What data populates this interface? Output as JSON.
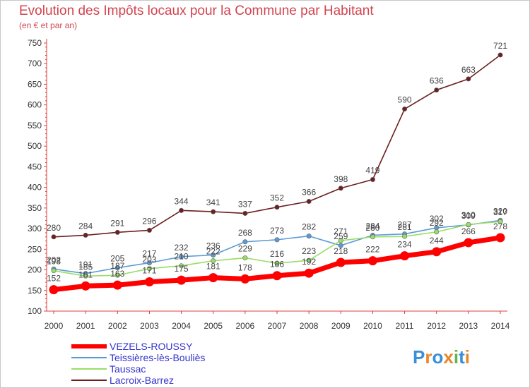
{
  "header": {
    "title": "Evolution des Impôts locaux pour la Commune par Habitant",
    "subtitle": "(en € et par an)"
  },
  "chart_data": {
    "type": "line",
    "x": [
      "2000",
      "2001",
      "2002",
      "2003",
      "2004",
      "2005",
      "2006",
      "2007",
      "2008",
      "2009",
      "2010",
      "2011",
      "2012",
      "2013",
      "2014"
    ],
    "ylim": [
      100,
      750
    ],
    "yticks": [
      "100",
      "150",
      "200",
      "250",
      "300",
      "350",
      "400",
      "450",
      "500",
      "550",
      "600",
      "650",
      "700",
      "750"
    ],
    "grid": false,
    "legend_position": "bottom-left",
    "series": [
      {
        "name": "VEZELS-ROUSSY",
        "color": "#ff0000",
        "values": [
          152,
          161,
          163,
          171,
          175,
          181,
          178,
          186,
          192,
          218,
          222,
          234,
          244,
          266,
          278
        ],
        "labels": [
          "152",
          "161",
          "163",
          "171",
          "175",
          "181",
          "178",
          "186",
          "192",
          "218",
          "222",
          "234",
          "244",
          "266",
          "278"
        ]
      },
      {
        "name": "Teissières-lès-Bouliès",
        "color": "#5b9bd5",
        "values": [
          202,
          191,
          205,
          217,
          232,
          236,
          268,
          273,
          282,
          259,
          284,
          287,
          302,
          309,
          320
        ],
        "labels": [
          "202",
          "191",
          "205",
          "217",
          "232",
          "236",
          "268",
          "273",
          "282",
          "259",
          "284",
          "287",
          "302",
          "309",
          "320"
        ]
      },
      {
        "name": "Taussac",
        "color": "#99dd66",
        "values": [
          198,
          185,
          187,
          203,
          210,
          222,
          229,
          216,
          223,
          271,
          280,
          281,
          292,
          310,
          317
        ],
        "labels": [
          "198",
          "185",
          "187",
          "203",
          "210",
          "222",
          "229",
          "216",
          "223",
          "271",
          "280",
          "281",
          "292",
          "310",
          "317"
        ]
      },
      {
        "name": "Lacroix-Barrez",
        "color": "#6b1f1f",
        "values": [
          280,
          284,
          291,
          296,
          344,
          341,
          337,
          352,
          366,
          398,
          419,
          590,
          636,
          663,
          721
        ],
        "labels": [
          "280",
          "284",
          "291",
          "296",
          "344",
          "341",
          "337",
          "352",
          "366",
          "398",
          "419",
          "590",
          "636",
          "663",
          "721"
        ]
      }
    ]
  },
  "legend": {
    "items": [
      {
        "label": "VEZELS-ROUSSY",
        "color": "#ff0000"
      },
      {
        "label": "Teissières-lès-Bouliès",
        "color": "#5b9bd5"
      },
      {
        "label": "Taussac",
        "color": "#99dd66"
      },
      {
        "label": "Lacroix-Barrez",
        "color": "#6b1f1f"
      }
    ]
  },
  "branding": {
    "logo_text": "Proxiti"
  }
}
